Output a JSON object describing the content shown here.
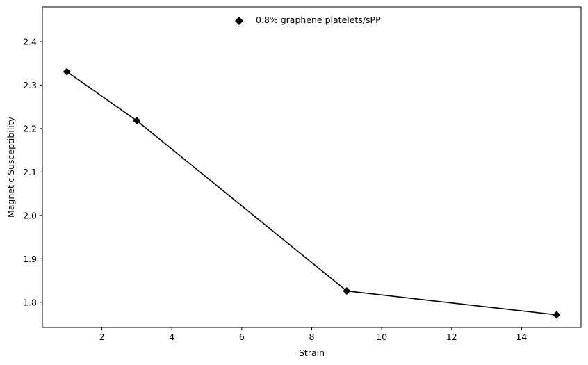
{
  "chart_data": {
    "type": "line",
    "title": "",
    "xlabel": "Strain",
    "ylabel": "Magnetic Susceptibility",
    "xlim": [
      0.3,
      15.7
    ],
    "ylim": [
      1.742,
      2.48
    ],
    "xticks": [
      2,
      4,
      6,
      8,
      10,
      12,
      14
    ],
    "yticks": [
      1.8,
      1.9,
      2.0,
      2.1,
      2.2,
      2.3,
      2.4
    ],
    "grid": false,
    "legend_position": "top-center",
    "series": [
      {
        "name": "0.8% graphene platelets/sPP",
        "x": [
          1,
          3,
          9,
          15
        ],
        "y": [
          2.331,
          2.218,
          1.826,
          1.771
        ],
        "color": "#000000",
        "marker": "diamond"
      }
    ]
  }
}
